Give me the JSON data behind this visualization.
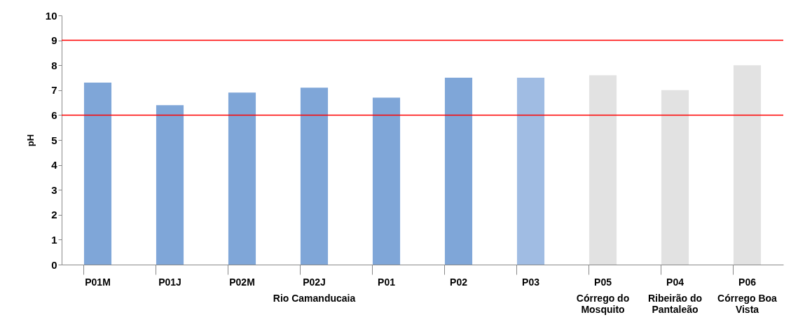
{
  "chart_data": {
    "type": "bar",
    "ylabel": "pH",
    "categories": [
      "P01M",
      "P01J",
      "P02M",
      "P02J",
      "P01",
      "P02",
      "P03",
      "P05",
      "P04",
      "P06"
    ],
    "values": [
      7.3,
      6.4,
      6.9,
      7.1,
      6.7,
      7.5,
      7.5,
      7.6,
      7.0,
      8.0
    ],
    "colors": [
      "#7fa6d8",
      "#7fa6d8",
      "#7fa6d8",
      "#7fa6d8",
      "#7fa6d8",
      "#7fa6d8",
      "#a0bce3",
      "#e2e2e2",
      "#e2e2e2",
      "#e2e2e2"
    ],
    "ylim": [
      0,
      10
    ],
    "yticks": [
      0,
      1,
      2,
      3,
      4,
      5,
      6,
      7,
      8,
      9,
      10
    ],
    "ref_lines": [
      {
        "axis": "y",
        "value": 9,
        "color": "#ff0000"
      },
      {
        "axis": "y",
        "value": 6,
        "color": "#ff0000"
      }
    ],
    "annotations": [
      "Rio Camanducaia",
      "Córrego do Mosquito",
      "Ribeirão do Pantaleão",
      "Córrego Boa Vista"
    ]
  }
}
